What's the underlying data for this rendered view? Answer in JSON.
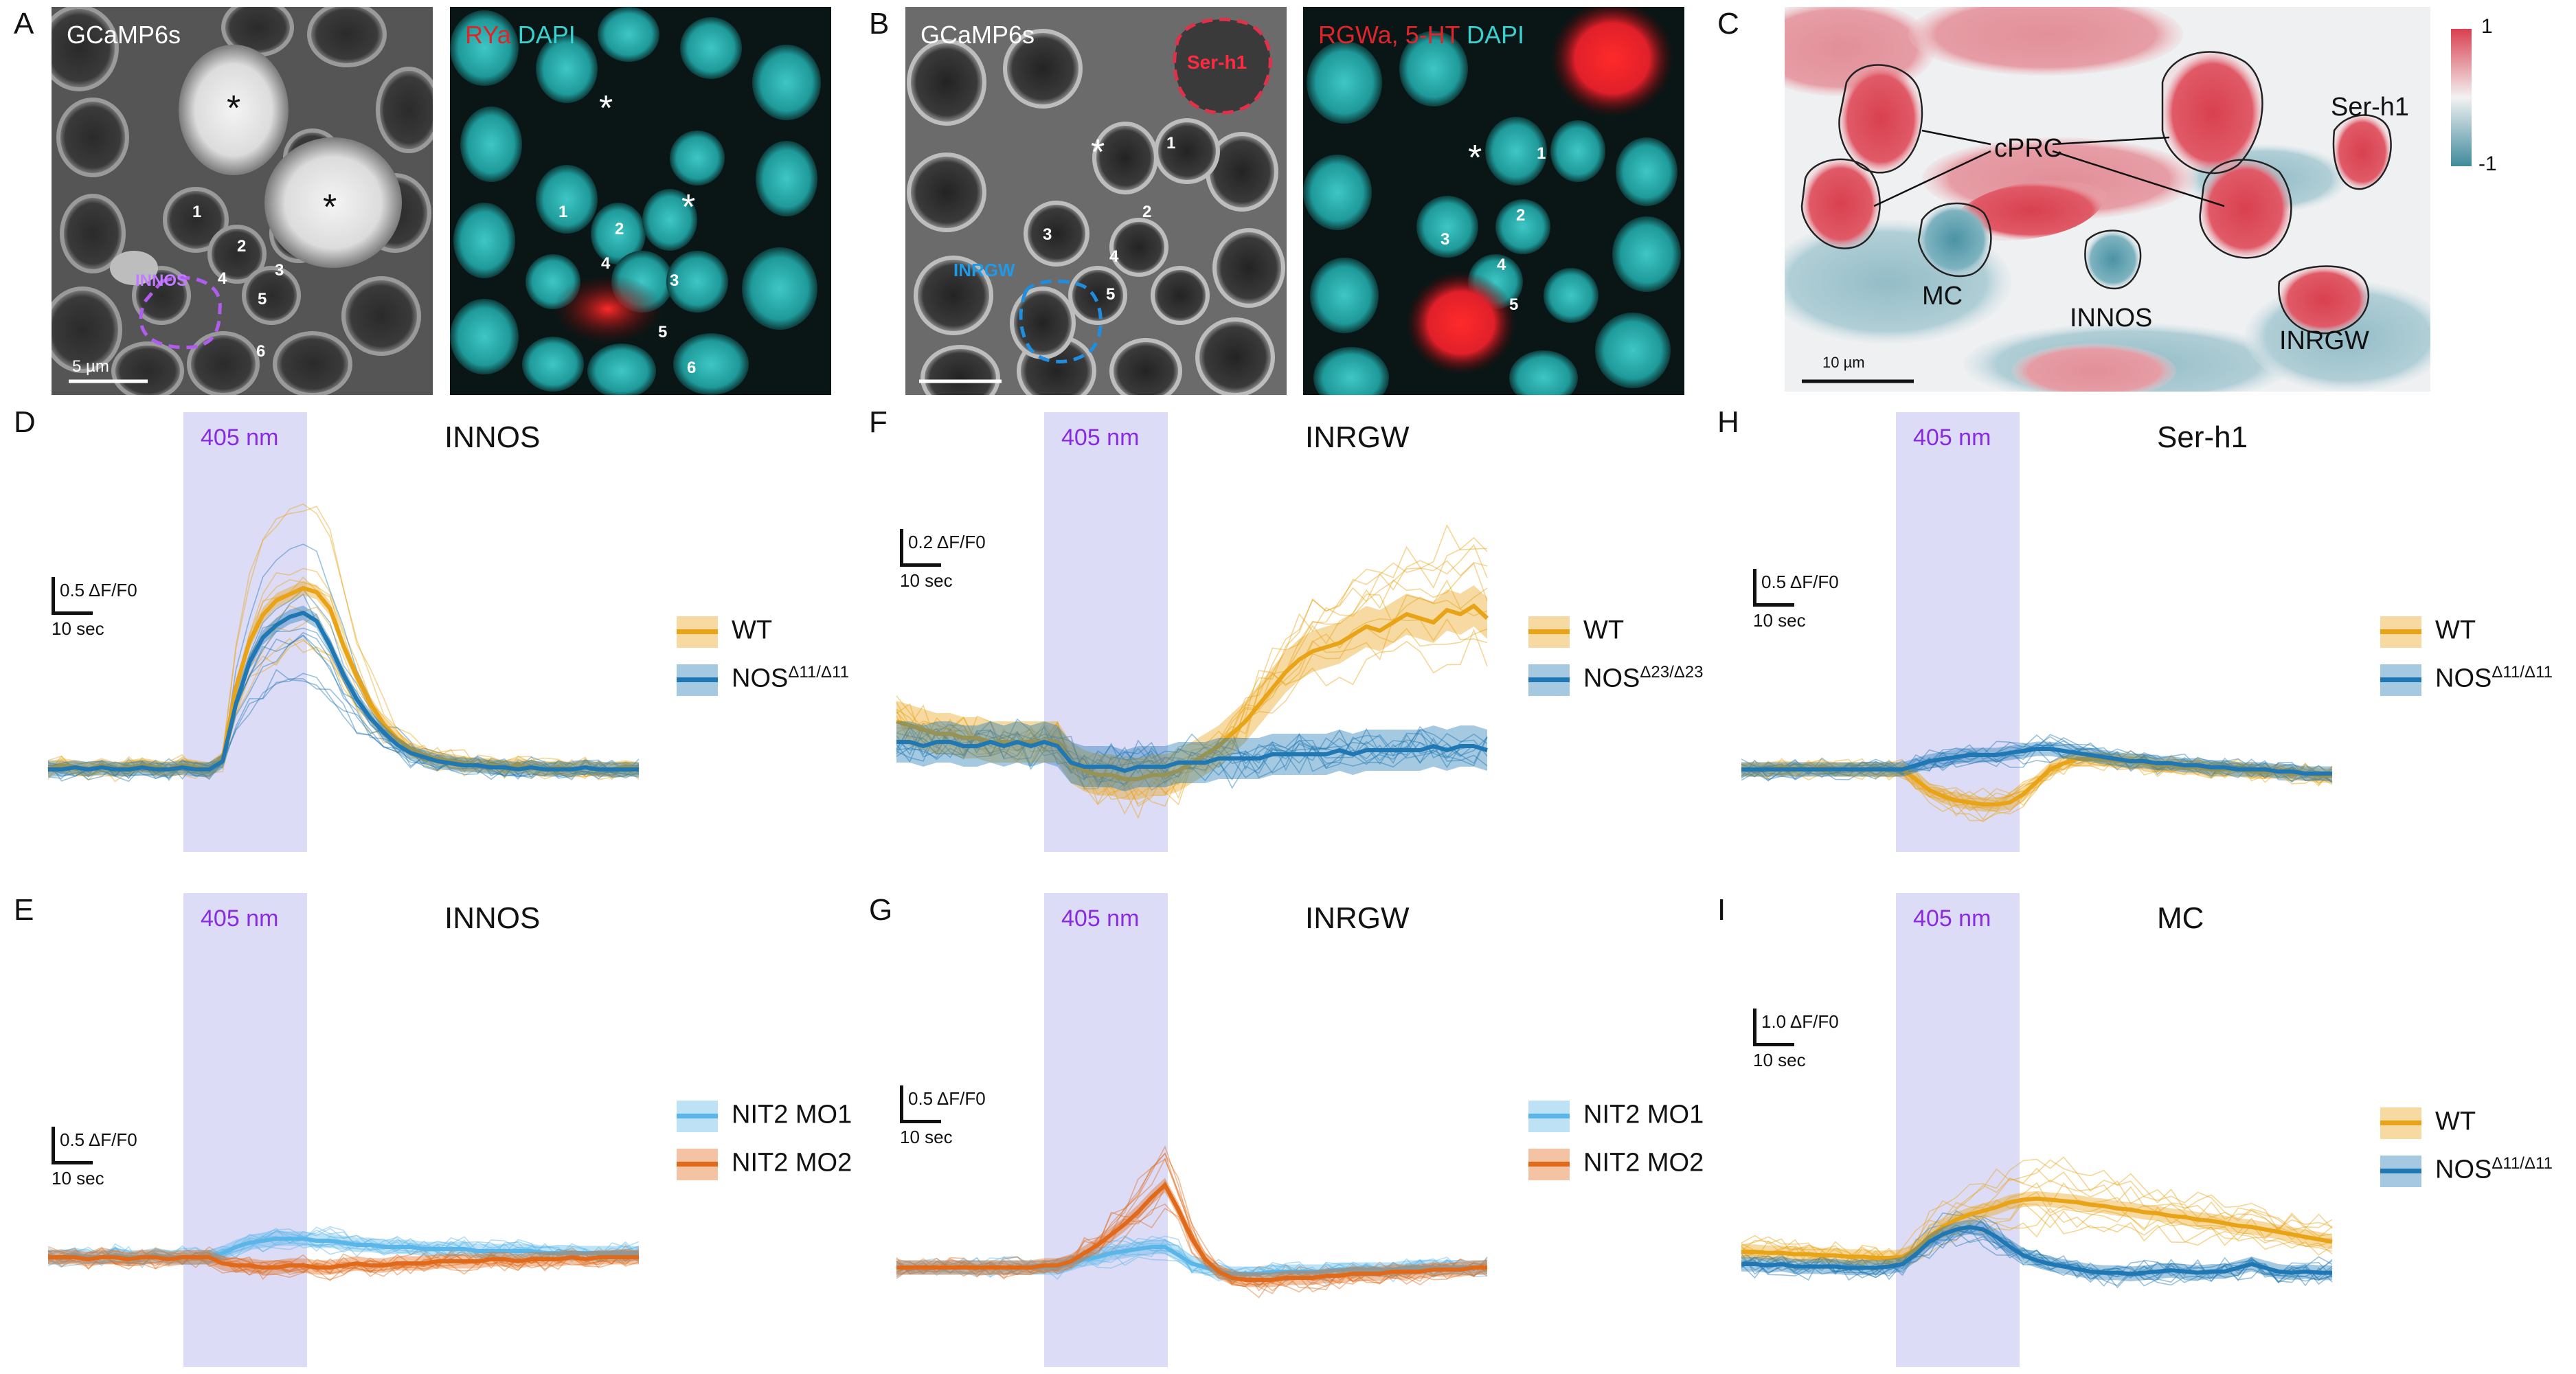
{
  "letters": {
    "A": "A",
    "B": "B",
    "C": "C",
    "D": "D",
    "E": "E",
    "F": "F",
    "G": "G",
    "H": "H",
    "I": "I"
  },
  "panelA": {
    "gcamp_label": "GCaMP6s",
    "ryа_dummy": "",
    "stain_red": "RYa",
    "stain_cyan": "DAPI",
    "innos_label": "INNOS",
    "scale_label": "5 µm",
    "numbers_left": [
      "1",
      "2",
      "3",
      "4",
      "5",
      "6"
    ],
    "numbers_right": [
      "1",
      "2",
      "3",
      "4",
      "5",
      "6"
    ],
    "star": "*"
  },
  "panelB": {
    "gcamp_label": "GCaMP6s",
    "stain_red": "RGWa, 5-HT",
    "stain_cyan": "DAPI",
    "ser_label": "Ser-h1",
    "inrgw_label": "INRGW",
    "numbers_left": [
      "1",
      "2",
      "3",
      "4",
      "5"
    ],
    "numbers_right": [
      "1",
      "2",
      "3",
      "4",
      "5"
    ],
    "star": "*"
  },
  "panelC": {
    "labels": {
      "cprc": "cPRC",
      "serh1": "Ser-h1",
      "mc": "MC",
      "innos": "INNOS",
      "inrgw": "INRGW"
    },
    "scale_label": "10 µm",
    "colorbar": {
      "max": "1",
      "min": "-1",
      "top_color": "#d94050",
      "bottom_color": "#3f8a9c"
    }
  },
  "colors": {
    "wt": "#e8a317",
    "nos": "#1f77b4",
    "mo1": "#5ab6e8",
    "mo2": "#e06a1a",
    "stim": "#dcdcf7",
    "stim_text": "#8a2be2"
  },
  "chart_data": [
    {
      "id": "D",
      "type": "line",
      "title": "INNOS",
      "stim_label": "405 nm",
      "scalebar": {
        "y": "0.5 ΔF/F0",
        "x": "10 sec"
      },
      "legend": [
        {
          "name": "WT",
          "sup": ""
        },
        {
          "name": "NOS",
          "sup": "Δ11/Δ11"
        }
      ],
      "series": [
        {
          "name": "WT",
          "color": "wt",
          "values": [
            0,
            0.02,
            0.01,
            0.0,
            0.02,
            0.0,
            0.01,
            0.02,
            0.01,
            0.0,
            0.02,
            0.01,
            0.0,
            0.05,
            0.4,
            0.62,
            0.75,
            0.82,
            0.85,
            0.88,
            0.86,
            0.78,
            0.6,
            0.45,
            0.32,
            0.22,
            0.15,
            0.1,
            0.07,
            0.05,
            0.04,
            0.03,
            0.02,
            0.02,
            0.01,
            0.02,
            0.01,
            0.0,
            0.01,
            0.0,
            0.01,
            0.0,
            0.0,
            0.01,
            0.0
          ]
        },
        {
          "name": "NOS",
          "color": "nos",
          "values": [
            0,
            0.0,
            0.01,
            0.0,
            0.01,
            0.0,
            0.0,
            0.01,
            0.0,
            0.0,
            0.01,
            0.0,
            0.0,
            0.04,
            0.32,
            0.52,
            0.64,
            0.7,
            0.74,
            0.76,
            0.72,
            0.6,
            0.46,
            0.34,
            0.25,
            0.18,
            0.12,
            0.08,
            0.06,
            0.04,
            0.03,
            0.02,
            0.02,
            0.01,
            0.01,
            0.0,
            0.01,
            0.0,
            0.0,
            0.0,
            0.01,
            0.0,
            0.0,
            0.0,
            0.0
          ]
        }
      ]
    },
    {
      "id": "E",
      "type": "line",
      "title": "INNOS",
      "stim_label": "405 nm",
      "scalebar": {
        "y": "0.5 ΔF/F0",
        "x": "10 sec"
      },
      "legend": [
        {
          "name": "NIT2 MO1",
          "sup": ""
        },
        {
          "name": "NIT2 MO2",
          "sup": ""
        }
      ],
      "series": [
        {
          "name": "NIT2 MO1",
          "color": "mo1",
          "values": [
            0,
            0.0,
            0.01,
            0.0,
            0.0,
            0.01,
            0.0,
            0.0,
            0.01,
            0.0,
            0.0,
            0.0,
            0.0,
            0.02,
            0.05,
            0.07,
            0.08,
            0.09,
            0.09,
            0.09,
            0.08,
            0.08,
            0.07,
            0.06,
            0.06,
            0.05,
            0.05,
            0.05,
            0.04,
            0.04,
            0.04,
            0.04,
            0.03,
            0.03,
            0.03,
            0.03,
            0.03,
            0.02,
            0.02,
            0.02,
            0.02,
            0.02,
            0.02,
            0.02,
            0.02
          ]
        },
        {
          "name": "NIT2 MO2",
          "color": "mo2",
          "values": [
            0,
            0.0,
            0.0,
            -0.01,
            0.0,
            0.0,
            -0.01,
            0.0,
            0.0,
            -0.01,
            0.0,
            0.0,
            0.0,
            -0.03,
            -0.04,
            -0.04,
            -0.05,
            -0.05,
            -0.04,
            -0.04,
            -0.05,
            -0.05,
            -0.04,
            -0.03,
            -0.04,
            -0.04,
            -0.03,
            -0.03,
            -0.03,
            -0.02,
            -0.02,
            -0.02,
            -0.02,
            -0.01,
            -0.01,
            -0.02,
            -0.01,
            -0.01,
            -0.01,
            0.0,
            -0.01,
            0.0,
            0.0,
            0.0,
            0.0
          ]
        }
      ]
    },
    {
      "id": "F",
      "type": "line",
      "title": "INRGW",
      "stim_label": "405 nm",
      "scalebar": {
        "y": "0.2 ΔF/F0",
        "x": "10 sec"
      },
      "legend": [
        {
          "name": "WT",
          "sup": ""
        },
        {
          "name": "NOS",
          "sup": "Δ23/Δ23"
        }
      ],
      "series": [
        {
          "name": "WT",
          "color": "wt",
          "values": [
            0.05,
            0.04,
            0.03,
            0.02,
            0.02,
            0.01,
            0.01,
            0.0,
            0.0,
            0.0,
            0.0,
            0.0,
            0.0,
            -0.05,
            -0.07,
            -0.08,
            -0.08,
            -0.09,
            -0.09,
            -0.08,
            -0.08,
            -0.07,
            -0.05,
            -0.03,
            -0.01,
            0.02,
            0.05,
            0.09,
            0.13,
            0.17,
            0.2,
            0.22,
            0.23,
            0.24,
            0.26,
            0.28,
            0.27,
            0.29,
            0.31,
            0.3,
            0.29,
            0.32,
            0.31,
            0.33,
            0.3
          ]
        },
        {
          "name": "NOS",
          "color": "nos",
          "values": [
            0,
            0.0,
            -0.01,
            0.0,
            0.0,
            -0.01,
            -0.01,
            0.0,
            -0.01,
            0.0,
            -0.01,
            0.0,
            -0.01,
            -0.05,
            -0.06,
            -0.06,
            -0.06,
            -0.07,
            -0.06,
            -0.06,
            -0.06,
            -0.05,
            -0.05,
            -0.05,
            -0.04,
            -0.04,
            -0.04,
            -0.04,
            -0.03,
            -0.03,
            -0.03,
            -0.03,
            -0.03,
            -0.02,
            -0.03,
            -0.02,
            -0.02,
            -0.02,
            -0.02,
            -0.02,
            -0.01,
            -0.02,
            -0.01,
            -0.01,
            -0.02
          ]
        }
      ]
    },
    {
      "id": "G",
      "type": "line",
      "title": "INRGW",
      "stim_label": "405 nm",
      "scalebar": {
        "y": "0.5 ΔF/F0",
        "x": "10 sec"
      },
      "legend": [
        {
          "name": "NIT2 MO1",
          "sup": ""
        },
        {
          "name": "NIT2 MO2",
          "sup": ""
        }
      ],
      "series": [
        {
          "name": "NIT2 MO1",
          "color": "mo1",
          "values": [
            0,
            0.0,
            0.0,
            0.0,
            0.0,
            0.0,
            0.0,
            0.0,
            0.0,
            0.0,
            0.0,
            0.0,
            0.0,
            0.02,
            0.04,
            0.05,
            0.07,
            0.08,
            0.09,
            0.1,
            0.1,
            0.06,
            0.02,
            0.0,
            -0.02,
            -0.03,
            -0.03,
            -0.03,
            -0.02,
            -0.02,
            -0.02,
            -0.02,
            -0.02,
            -0.01,
            -0.01,
            -0.01,
            -0.01,
            -0.01,
            0.0,
            0.0,
            0.0,
            0.0,
            0.0,
            0.0,
            0.0
          ]
        },
        {
          "name": "NIT2 MO2",
          "color": "mo2",
          "values": [
            0,
            0.0,
            0.0,
            0.0,
            0.0,
            0.0,
            0.0,
            0.0,
            0.0,
            0.0,
            0.0,
            0.01,
            0.01,
            0.03,
            0.07,
            0.11,
            0.16,
            0.21,
            0.27,
            0.34,
            0.4,
            0.28,
            0.14,
            0.04,
            -0.02,
            -0.05,
            -0.06,
            -0.06,
            -0.06,
            -0.05,
            -0.05,
            -0.05,
            -0.04,
            -0.04,
            -0.03,
            -0.03,
            -0.03,
            -0.02,
            -0.02,
            -0.02,
            -0.01,
            -0.01,
            -0.01,
            0.0,
            0.0
          ]
        }
      ]
    },
    {
      "id": "H",
      "type": "line",
      "title": "Ser-h1",
      "stim_label": "405 nm",
      "scalebar": {
        "y": "0.5 ΔF/F0",
        "x": "10 sec"
      },
      "legend": [
        {
          "name": "WT",
          "sup": ""
        },
        {
          "name": "NOS",
          "sup": "Δ11/Δ11"
        }
      ],
      "series": [
        {
          "name": "WT",
          "color": "wt",
          "values": [
            0,
            0.0,
            0.0,
            0.01,
            0.0,
            0.0,
            0.01,
            0.0,
            0.0,
            0.0,
            0.0,
            0.0,
            0.0,
            -0.05,
            -0.1,
            -0.13,
            -0.15,
            -0.16,
            -0.17,
            -0.17,
            -0.16,
            -0.12,
            -0.06,
            0.0,
            0.03,
            0.05,
            0.05,
            0.05,
            0.04,
            0.04,
            0.03,
            0.02,
            0.02,
            0.01,
            0.01,
            0.0,
            0.0,
            0.0,
            -0.01,
            -0.01,
            -0.01,
            -0.02,
            -0.02,
            -0.03,
            -0.03
          ]
        },
        {
          "name": "NOS",
          "color": "nos",
          "values": [
            0,
            0.0,
            0.0,
            0.0,
            0.0,
            0.0,
            0.0,
            0.0,
            0.0,
            0.0,
            0.0,
            0.0,
            0.0,
            0.02,
            0.04,
            0.05,
            0.06,
            0.07,
            0.07,
            0.07,
            0.08,
            0.09,
            0.1,
            0.1,
            0.09,
            0.08,
            0.07,
            0.06,
            0.05,
            0.04,
            0.04,
            0.03,
            0.03,
            0.02,
            0.02,
            0.01,
            0.01,
            0.0,
            0.0,
            0.0,
            -0.01,
            -0.01,
            -0.02,
            -0.02,
            -0.02
          ]
        }
      ]
    },
    {
      "id": "I",
      "type": "line",
      "title": "MC",
      "stim_label": "405 nm",
      "scalebar": {
        "y": "1.0 ΔF/F0",
        "x": "10 sec"
      },
      "legend": [
        {
          "name": "WT",
          "sup": ""
        },
        {
          "name": "NOS",
          "sup": "Δ11/Δ11"
        }
      ],
      "series": [
        {
          "name": "WT",
          "color": "wt",
          "values": [
            0.1,
            0.1,
            0.09,
            0.09,
            0.08,
            0.08,
            0.07,
            0.07,
            0.06,
            0.06,
            0.05,
            0.05,
            0.06,
            0.12,
            0.22,
            0.3,
            0.36,
            0.4,
            0.43,
            0.46,
            0.5,
            0.52,
            0.53,
            0.52,
            0.51,
            0.5,
            0.48,
            0.47,
            0.45,
            0.44,
            0.42,
            0.41,
            0.39,
            0.38,
            0.36,
            0.35,
            0.33,
            0.31,
            0.3,
            0.28,
            0.26,
            0.24,
            0.22,
            0.2,
            0.18
          ]
        },
        {
          "name": "NOS",
          "color": "nos",
          "values": [
            0.0,
            0.0,
            -0.01,
            0.0,
            -0.02,
            -0.02,
            -0.02,
            -0.02,
            -0.03,
            -0.03,
            -0.03,
            -0.02,
            0.0,
            0.08,
            0.18,
            0.24,
            0.28,
            0.3,
            0.28,
            0.22,
            0.14,
            0.07,
            0.03,
            0.0,
            -0.02,
            -0.04,
            -0.06,
            -0.07,
            -0.07,
            -0.08,
            -0.07,
            -0.06,
            -0.05,
            -0.06,
            -0.07,
            -0.06,
            -0.06,
            -0.03,
            0.0,
            -0.03,
            -0.06,
            -0.07,
            -0.06,
            -0.07,
            -0.07
          ]
        }
      ]
    }
  ]
}
